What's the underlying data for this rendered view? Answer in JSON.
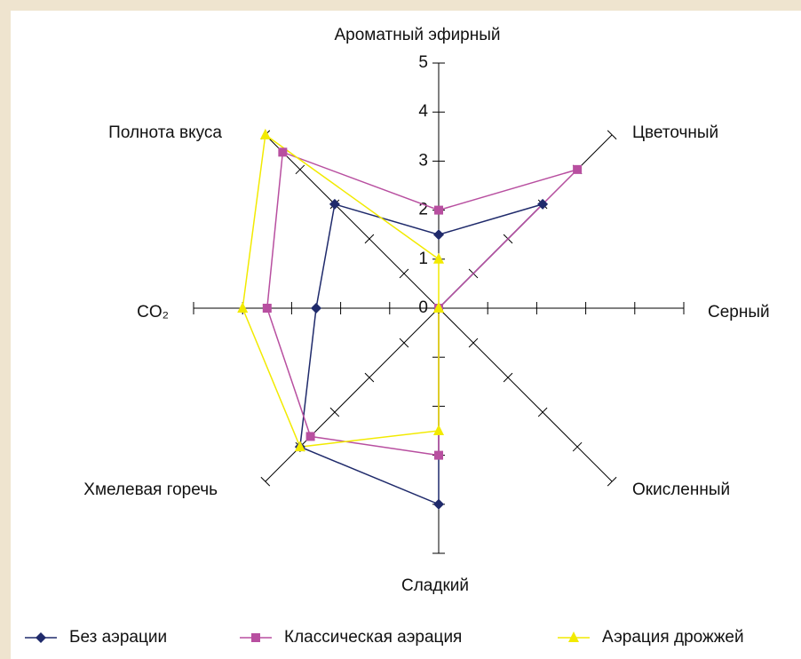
{
  "chart_data": {
    "type": "radar",
    "categories": [
      "Ароматный эфирный",
      "Цветочный",
      "Серный",
      "Окисленный",
      "Сладкий",
      "Хмелевая горечь",
      "CO₂",
      "Полнота вкуса"
    ],
    "series": [
      {
        "name": "Без аэрации",
        "color": "#1f2a6b",
        "marker": "diamond",
        "values": [
          1.5,
          3,
          0,
          0,
          4,
          4,
          2.5,
          3
        ]
      },
      {
        "name": "Классическая аэрация",
        "color": "#b84fa0",
        "marker": "square",
        "values": [
          2,
          4,
          0,
          0,
          3,
          3.7,
          3.5,
          4.5
        ]
      },
      {
        "name": "Аэрация дрожжей",
        "color": "#f2ea00",
        "marker": "triangle",
        "values": [
          1,
          0,
          0,
          0,
          2.5,
          4,
          4,
          5
        ]
      }
    ],
    "rlim": [
      0,
      5
    ],
    "rticks": [
      0,
      1,
      2,
      3,
      4,
      5
    ],
    "legend": "bottom"
  }
}
